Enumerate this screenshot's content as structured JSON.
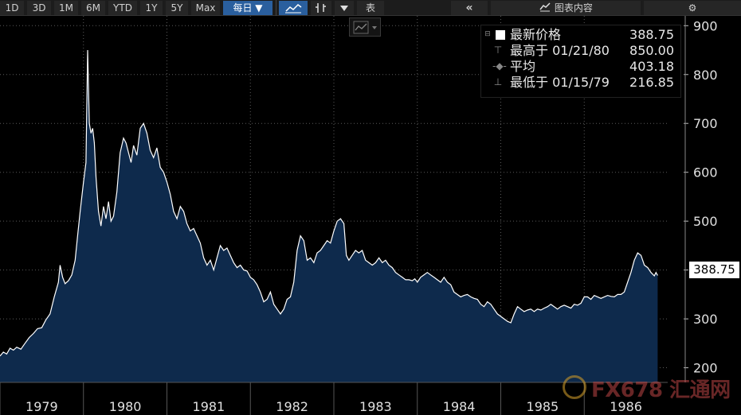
{
  "toolbar": {
    "ranges": [
      "1D",
      "3D",
      "1M",
      "6M",
      "YTD",
      "1Y",
      "5Y",
      "Max"
    ],
    "frequency": "每日 ▼",
    "table_label": "表",
    "collapse_glyph": "«",
    "chart_content_label": "图表内容",
    "settings_glyph": "⚙"
  },
  "legend": {
    "last_label": "最新价格",
    "last_value": "388.75",
    "high_label": "最高于 01/21/80",
    "high_value": "850.00",
    "avg_label": "平均",
    "avg_value": "403.18",
    "low_label": "最低于 01/15/79",
    "low_value": "216.85"
  },
  "last_badge": "388.75",
  "watermark": "FX678 汇通网",
  "colors": {
    "area_fill": "#0e2a4c",
    "line": "#ffffff",
    "active_button": "#2a5f9e"
  },
  "chart_data": {
    "type": "area",
    "title": "",
    "xlabel": "",
    "ylabel": "",
    "ylim": [
      170,
      920
    ],
    "yticks": [
      200,
      300,
      400,
      500,
      600,
      700,
      800,
      900
    ],
    "xlim": [
      1979.0,
      1987.0
    ],
    "xticks": [
      {
        "label": "1979",
        "at": 1979.0
      },
      {
        "label": "1980",
        "at": 1980.0
      },
      {
        "label": "1981",
        "at": 1981.0
      },
      {
        "label": "1982",
        "at": 1982.0
      },
      {
        "label": "1983",
        "at": 1983.0
      },
      {
        "label": "1984",
        "at": 1984.0
      },
      {
        "label": "1985",
        "at": 1985.0
      },
      {
        "label": "1986",
        "at": 1986.0
      }
    ],
    "x_label_offset_years": 0.5,
    "grid": true,
    "series": [
      {
        "values": [
          [
            1979.0,
            224
          ],
          [
            1979.04,
            232
          ],
          [
            1979.08,
            228
          ],
          [
            1979.12,
            240
          ],
          [
            1979.16,
            236
          ],
          [
            1979.2,
            242
          ],
          [
            1979.25,
            238
          ],
          [
            1979.3,
            250
          ],
          [
            1979.35,
            262
          ],
          [
            1979.4,
            270
          ],
          [
            1979.45,
            280
          ],
          [
            1979.5,
            282
          ],
          [
            1979.55,
            298
          ],
          [
            1979.6,
            310
          ],
          [
            1979.65,
            345
          ],
          [
            1979.7,
            375
          ],
          [
            1979.72,
            410
          ],
          [
            1979.75,
            385
          ],
          [
            1979.78,
            372
          ],
          [
            1979.82,
            378
          ],
          [
            1979.86,
            390
          ],
          [
            1979.9,
            420
          ],
          [
            1979.93,
            470
          ],
          [
            1979.96,
            520
          ],
          [
            1980.0,
            580
          ],
          [
            1980.03,
            620
          ],
          [
            1980.05,
            850
          ],
          [
            1980.07,
            700
          ],
          [
            1980.09,
            680
          ],
          [
            1980.11,
            690
          ],
          [
            1980.13,
            660
          ],
          [
            1980.15,
            590
          ],
          [
            1980.18,
            520
          ],
          [
            1980.21,
            490
          ],
          [
            1980.24,
            530
          ],
          [
            1980.27,
            505
          ],
          [
            1980.3,
            540
          ],
          [
            1980.33,
            500
          ],
          [
            1980.36,
            510
          ],
          [
            1980.4,
            560
          ],
          [
            1980.44,
            640
          ],
          [
            1980.48,
            670
          ],
          [
            1980.51,
            660
          ],
          [
            1980.54,
            640
          ],
          [
            1980.57,
            620
          ],
          [
            1980.6,
            655
          ],
          [
            1980.64,
            635
          ],
          [
            1980.68,
            690
          ],
          [
            1980.72,
            700
          ],
          [
            1980.76,
            680
          ],
          [
            1980.8,
            645
          ],
          [
            1980.84,
            630
          ],
          [
            1980.88,
            650
          ],
          [
            1980.92,
            610
          ],
          [
            1980.96,
            600
          ],
          [
            1981.0,
            580
          ],
          [
            1981.04,
            555
          ],
          [
            1981.08,
            520
          ],
          [
            1981.12,
            505
          ],
          [
            1981.16,
            530
          ],
          [
            1981.2,
            520
          ],
          [
            1981.24,
            495
          ],
          [
            1981.28,
            480
          ],
          [
            1981.32,
            485
          ],
          [
            1981.36,
            470
          ],
          [
            1981.4,
            455
          ],
          [
            1981.44,
            425
          ],
          [
            1981.48,
            410
          ],
          [
            1981.52,
            420
          ],
          [
            1981.56,
            400
          ],
          [
            1981.6,
            425
          ],
          [
            1981.64,
            450
          ],
          [
            1981.68,
            440
          ],
          [
            1981.72,
            445
          ],
          [
            1981.76,
            430
          ],
          [
            1981.8,
            415
          ],
          [
            1981.84,
            405
          ],
          [
            1981.88,
            410
          ],
          [
            1981.92,
            400
          ],
          [
            1981.96,
            398
          ],
          [
            1982.0,
            385
          ],
          [
            1982.04,
            380
          ],
          [
            1982.08,
            370
          ],
          [
            1982.12,
            355
          ],
          [
            1982.16,
            335
          ],
          [
            1982.2,
            340
          ],
          [
            1982.24,
            355
          ],
          [
            1982.28,
            330
          ],
          [
            1982.32,
            320
          ],
          [
            1982.36,
            310
          ],
          [
            1982.4,
            320
          ],
          [
            1982.44,
            340
          ],
          [
            1982.48,
            345
          ],
          [
            1982.52,
            375
          ],
          [
            1982.56,
            440
          ],
          [
            1982.6,
            470
          ],
          [
            1982.64,
            460
          ],
          [
            1982.68,
            420
          ],
          [
            1982.72,
            425
          ],
          [
            1982.76,
            415
          ],
          [
            1982.8,
            435
          ],
          [
            1982.84,
            440
          ],
          [
            1982.88,
            450
          ],
          [
            1982.92,
            460
          ],
          [
            1982.96,
            455
          ],
          [
            1983.0,
            480
          ],
          [
            1983.04,
            500
          ],
          [
            1983.08,
            505
          ],
          [
            1983.12,
            495
          ],
          [
            1983.15,
            430
          ],
          [
            1983.18,
            420
          ],
          [
            1983.22,
            430
          ],
          [
            1983.26,
            440
          ],
          [
            1983.3,
            435
          ],
          [
            1983.34,
            440
          ],
          [
            1983.38,
            420
          ],
          [
            1983.42,
            415
          ],
          [
            1983.46,
            410
          ],
          [
            1983.5,
            415
          ],
          [
            1983.54,
            425
          ],
          [
            1983.58,
            415
          ],
          [
            1983.62,
            420
          ],
          [
            1983.66,
            410
          ],
          [
            1983.7,
            405
          ],
          [
            1983.74,
            395
          ],
          [
            1983.78,
            390
          ],
          [
            1983.82,
            385
          ],
          [
            1983.86,
            380
          ],
          [
            1983.9,
            380
          ],
          [
            1983.94,
            378
          ],
          [
            1983.97,
            382
          ],
          [
            1984.0,
            375
          ],
          [
            1984.04,
            385
          ],
          [
            1984.08,
            390
          ],
          [
            1984.12,
            395
          ],
          [
            1984.16,
            390
          ],
          [
            1984.2,
            385
          ],
          [
            1984.24,
            380
          ],
          [
            1984.28,
            375
          ],
          [
            1984.32,
            385
          ],
          [
            1984.36,
            375
          ],
          [
            1984.4,
            370
          ],
          [
            1984.44,
            355
          ],
          [
            1984.48,
            350
          ],
          [
            1984.52,
            345
          ],
          [
            1984.56,
            348
          ],
          [
            1984.6,
            350
          ],
          [
            1984.64,
            345
          ],
          [
            1984.68,
            342
          ],
          [
            1984.72,
            340
          ],
          [
            1984.76,
            330
          ],
          [
            1984.8,
            325
          ],
          [
            1984.84,
            335
          ],
          [
            1984.88,
            330
          ],
          [
            1984.92,
            320
          ],
          [
            1984.96,
            310
          ],
          [
            1985.0,
            305
          ],
          [
            1985.04,
            300
          ],
          [
            1985.08,
            295
          ],
          [
            1985.12,
            292
          ],
          [
            1985.16,
            310
          ],
          [
            1985.2,
            325
          ],
          [
            1985.24,
            320
          ],
          [
            1985.28,
            315
          ],
          [
            1985.32,
            318
          ],
          [
            1985.36,
            320
          ],
          [
            1985.4,
            315
          ],
          [
            1985.44,
            320
          ],
          [
            1985.48,
            318
          ],
          [
            1985.52,
            322
          ],
          [
            1985.56,
            325
          ],
          [
            1985.6,
            330
          ],
          [
            1985.64,
            325
          ],
          [
            1985.68,
            320
          ],
          [
            1985.72,
            325
          ],
          [
            1985.76,
            328
          ],
          [
            1985.8,
            325
          ],
          [
            1985.84,
            322
          ],
          [
            1985.88,
            330
          ],
          [
            1985.92,
            328
          ],
          [
            1985.96,
            332
          ],
          [
            1986.0,
            345
          ],
          [
            1986.04,
            345
          ],
          [
            1986.08,
            340
          ],
          [
            1986.12,
            348
          ],
          [
            1986.16,
            345
          ],
          [
            1986.2,
            342
          ],
          [
            1986.24,
            345
          ],
          [
            1986.28,
            348
          ],
          [
            1986.32,
            346
          ],
          [
            1986.36,
            345
          ],
          [
            1986.4,
            350
          ],
          [
            1986.44,
            350
          ],
          [
            1986.48,
            355
          ],
          [
            1986.52,
            375
          ],
          [
            1986.56,
            395
          ],
          [
            1986.6,
            420
          ],
          [
            1986.64,
            435
          ],
          [
            1986.68,
            430
          ],
          [
            1986.72,
            410
          ],
          [
            1986.76,
            405
          ],
          [
            1986.8,
            395
          ],
          [
            1986.84,
            388
          ],
          [
            1986.86,
            395
          ],
          [
            1986.88,
            388.75
          ]
        ]
      }
    ]
  }
}
